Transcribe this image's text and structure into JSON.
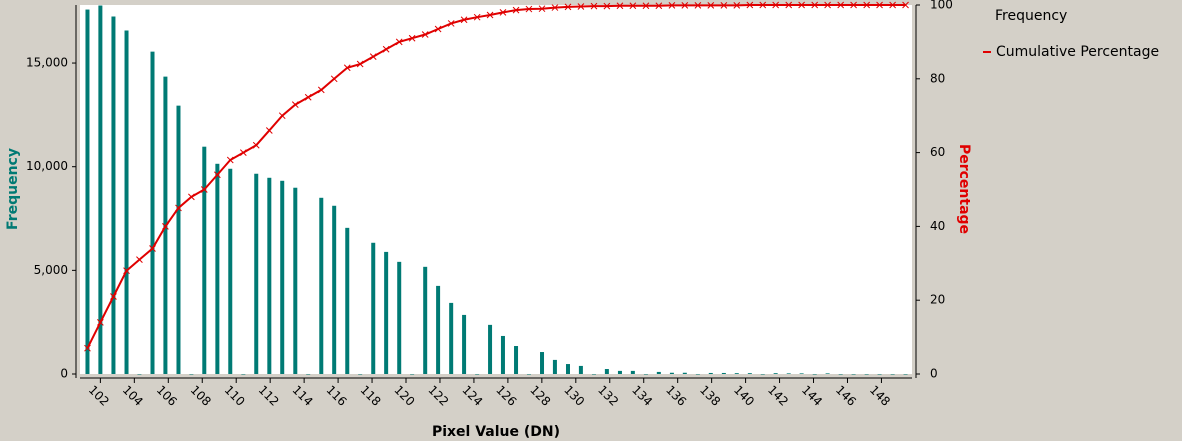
{
  "chart_data": {
    "type": "bar",
    "xlabel": "Pixel Value (DN)",
    "ylabel": "Frequency",
    "y2label": "Percentage",
    "x": [
      101.24,
      102.0,
      102.77,
      103.54,
      104.3,
      105.07,
      105.83,
      106.6,
      107.36,
      108.12,
      108.89,
      109.65,
      110.42,
      111.18,
      111.95,
      112.71,
      113.48,
      114.24,
      115.01,
      115.77,
      116.54,
      117.3,
      118.07,
      118.83,
      119.6,
      120.36,
      121.13,
      121.89,
      122.66,
      123.42,
      124.19,
      124.95,
      125.71,
      126.48,
      127.24,
      128.01,
      128.77,
      129.54,
      130.3,
      131.07,
      131.83,
      132.6,
      133.36,
      134.13,
      134.89,
      135.66,
      136.42,
      137.19,
      137.95,
      138.72,
      139.48,
      140.25,
      141.01,
      141.77,
      142.54,
      143.3,
      144.07,
      144.83,
      145.6,
      146.36,
      147.13,
      147.89,
      148.66,
      149.42
    ],
    "series": [
      {
        "name": "Frequency",
        "type": "bar",
        "color": "#007a74",
        "values": [
          17580,
          17775,
          17245,
          16570,
          0,
          15550,
          14345,
          12945,
          0,
          10965,
          10140,
          9900,
          0,
          9660,
          9465,
          9320,
          8985,
          0,
          8500,
          8115,
          7050,
          0,
          6330,
          5890,
          5410,
          0,
          5170,
          4250,
          3430,
          2850,
          0,
          2370,
          1835,
          1350,
          0,
          1060,
          680,
          480,
          390,
          0,
          240,
          150,
          150,
          0,
          100,
          60,
          60,
          0,
          50,
          50,
          40,
          40,
          0,
          40,
          30,
          30,
          0,
          30,
          0,
          0,
          0,
          0,
          0,
          0
        ]
      },
      {
        "name": "Cumulative Percentage",
        "type": "line",
        "axis": "y2",
        "color": "#e00000",
        "values": [
          7,
          14,
          21,
          28,
          31,
          34,
          40,
          45,
          48,
          50,
          54,
          58,
          60,
          62,
          66,
          70,
          73,
          75,
          77,
          80,
          83,
          84,
          86,
          88,
          90,
          91,
          92,
          93.5,
          95,
          96,
          96.7,
          97.3,
          98,
          98.6,
          98.9,
          99,
          99.3,
          99.5,
          99.6,
          99.7,
          99.7,
          99.8,
          99.8,
          99.8,
          99.8,
          99.9,
          99.9,
          99.9,
          99.9,
          99.9,
          99.9,
          100,
          100,
          100,
          100,
          100,
          100,
          100,
          100,
          100,
          100,
          100,
          100,
          100
        ]
      }
    ],
    "xlim": [
      100.8,
      149.8
    ],
    "xticks": [
      102,
      104,
      106,
      108,
      110,
      112,
      114,
      116,
      118,
      120,
      122,
      124,
      126,
      128,
      130,
      132,
      134,
      136,
      138,
      140,
      142,
      144,
      146,
      148
    ],
    "ylim": [
      0,
      17800
    ],
    "yticks": [
      0,
      {
        "value": 5000,
        "label": "5,000"
      },
      {
        "value": 10000,
        "label": "10,000"
      },
      {
        "value": 15000,
        "label": "15,000"
      }
    ],
    "y2lim": [
      0,
      100
    ],
    "y2ticks": [
      0,
      20,
      40,
      60,
      80,
      100
    ],
    "legend": "right"
  }
}
